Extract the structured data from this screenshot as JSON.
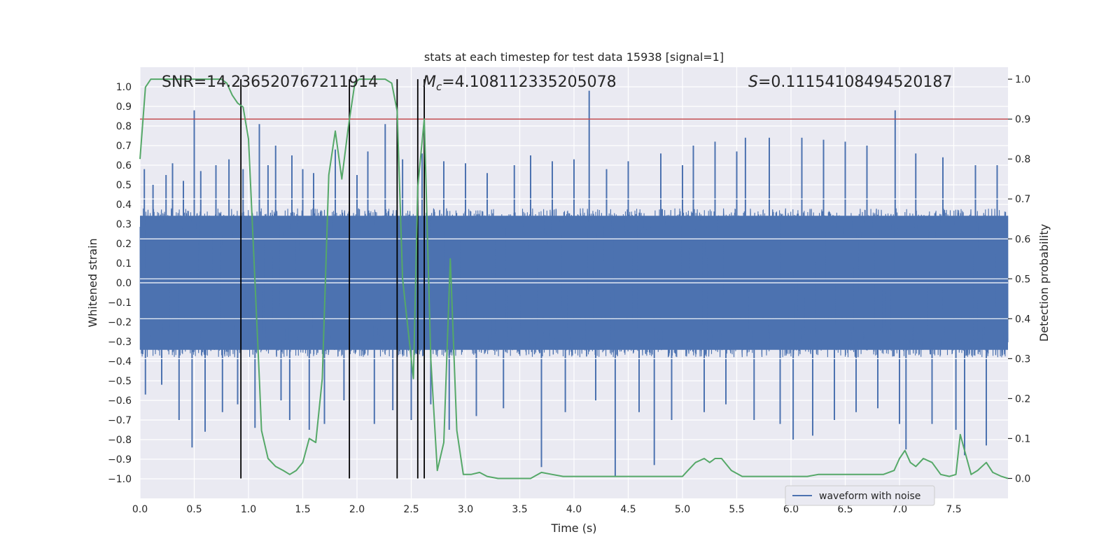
{
  "chart_data": {
    "type": "line",
    "title": "stats at each timestep for test data 15938 [signal=1]",
    "xlabel": "Time (s)",
    "ylabel_left": "Whitened strain",
    "ylabel_right": "Detection probability",
    "xlim": [
      0.0,
      8.0
    ],
    "ylim_left": [
      -1.1,
      1.1
    ],
    "ylim_right": [
      -0.05,
      1.03
    ],
    "x_ticks": [
      "0.0",
      "0.5",
      "1.0",
      "1.5",
      "2.0",
      "2.5",
      "3.0",
      "3.5",
      "4.0",
      "4.5",
      "5.0",
      "5.5",
      "6.0",
      "6.5",
      "7.0",
      "7.5"
    ],
    "x_tick_values": [
      0.0,
      0.5,
      1.0,
      1.5,
      2.0,
      2.5,
      3.0,
      3.5,
      4.0,
      4.5,
      5.0,
      5.5,
      6.0,
      6.5,
      7.0,
      7.5
    ],
    "y_left_ticks": [
      "1.0",
      "0.9",
      "0.8",
      "0.7",
      "0.6",
      "0.5",
      "0.4",
      "0.3",
      "0.2",
      "0.1",
      "0.0",
      "−0.1",
      "−0.2",
      "−0.3",
      "−0.4",
      "−0.5",
      "−0.6",
      "−0.7",
      "−0.8",
      "−0.9",
      "−1.0"
    ],
    "y_left_tick_values": [
      1.0,
      0.9,
      0.8,
      0.7,
      0.6,
      0.5,
      0.4,
      0.3,
      0.2,
      0.1,
      0.0,
      -0.1,
      -0.2,
      -0.3,
      -0.4,
      -0.5,
      -0.6,
      -0.7,
      -0.8,
      -0.9,
      -1.0
    ],
    "y_right_ticks": [
      "1.0",
      "0.9",
      "0.8",
      "0.7",
      "0.6",
      "0.5",
      "0.4",
      "0.3",
      "0.2",
      "0.1",
      "0.0"
    ],
    "y_right_tick_values": [
      1.0,
      0.9,
      0.8,
      0.7,
      0.6,
      0.5,
      0.4,
      0.3,
      0.2,
      0.1,
      0.0
    ],
    "annotations": {
      "snr": "SNR=14.236520767211914",
      "mc_symbol": "M",
      "mc_sub": "c",
      "mc_value": "=4.108112335205078",
      "s_symbol": "S",
      "s_value": "=0.11154108494520187"
    },
    "threshold_probability": 0.9,
    "vertical_markers_s": [
      0.93,
      1.93,
      2.37,
      2.56,
      2.62
    ],
    "legend": {
      "label": "waveform with noise",
      "placement": "lower-right"
    },
    "series": [
      {
        "name": "waveform with noise",
        "axis": "left",
        "color": "#4c72b0",
        "envelope": {
          "upper": 0.38,
          "lower": -0.38
        },
        "spikes": [
          {
            "x": 0.04,
            "y": 0.58
          },
          {
            "x": 0.05,
            "y": -0.57
          },
          {
            "x": 0.12,
            "y": 0.5
          },
          {
            "x": 0.2,
            "y": -0.52
          },
          {
            "x": 0.24,
            "y": 0.55
          },
          {
            "x": 0.3,
            "y": 0.61
          },
          {
            "x": 0.36,
            "y": -0.7
          },
          {
            "x": 0.4,
            "y": 0.52
          },
          {
            "x": 0.5,
            "y": 0.88
          },
          {
            "x": 0.48,
            "y": -0.84
          },
          {
            "x": 0.56,
            "y": 0.57
          },
          {
            "x": 0.6,
            "y": -0.76
          },
          {
            "x": 0.7,
            "y": 0.6
          },
          {
            "x": 0.76,
            "y": -0.66
          },
          {
            "x": 0.82,
            "y": 0.63
          },
          {
            "x": 0.9,
            "y": -0.62
          },
          {
            "x": 0.95,
            "y": 0.58
          },
          {
            "x": 1.1,
            "y": 0.81
          },
          {
            "x": 1.06,
            "y": -0.74
          },
          {
            "x": 1.18,
            "y": 0.6
          },
          {
            "x": 1.25,
            "y": 0.7
          },
          {
            "x": 1.3,
            "y": -0.6
          },
          {
            "x": 1.4,
            "y": 0.65
          },
          {
            "x": 1.38,
            "y": -0.7
          },
          {
            "x": 1.5,
            "y": 0.58
          },
          {
            "x": 1.56,
            "y": -0.75
          },
          {
            "x": 1.6,
            "y": 0.56
          },
          {
            "x": 1.7,
            "y": -0.72
          },
          {
            "x": 1.8,
            "y": 0.68
          },
          {
            "x": 1.88,
            "y": -0.6
          },
          {
            "x": 2.0,
            "y": 0.55
          },
          {
            "x": 2.1,
            "y": 0.67
          },
          {
            "x": 2.16,
            "y": -0.72
          },
          {
            "x": 2.26,
            "y": 0.81
          },
          {
            "x": 2.33,
            "y": -0.65
          },
          {
            "x": 2.42,
            "y": 0.63
          },
          {
            "x": 2.5,
            "y": -0.7
          },
          {
            "x": 2.6,
            "y": 0.66
          },
          {
            "x": 2.68,
            "y": -0.62
          },
          {
            "x": 2.8,
            "y": 0.62
          },
          {
            "x": 2.85,
            "y": -0.75
          },
          {
            "x": 3.0,
            "y": 0.61
          },
          {
            "x": 3.1,
            "y": -0.68
          },
          {
            "x": 3.2,
            "y": 0.56
          },
          {
            "x": 3.35,
            "y": -0.64
          },
          {
            "x": 3.45,
            "y": 0.6
          },
          {
            "x": 3.6,
            "y": 0.65
          },
          {
            "x": 3.7,
            "y": -0.94
          },
          {
            "x": 3.8,
            "y": 0.62
          },
          {
            "x": 3.92,
            "y": -0.66
          },
          {
            "x": 4.0,
            "y": 0.63
          },
          {
            "x": 4.14,
            "y": 0.98
          },
          {
            "x": 4.2,
            "y": -0.6
          },
          {
            "x": 4.3,
            "y": 0.58
          },
          {
            "x": 4.38,
            "y": -0.99
          },
          {
            "x": 4.5,
            "y": 0.62
          },
          {
            "x": 4.6,
            "y": -0.66
          },
          {
            "x": 4.74,
            "y": -0.93
          },
          {
            "x": 4.8,
            "y": 0.66
          },
          {
            "x": 4.9,
            "y": -0.7
          },
          {
            "x": 5.0,
            "y": 0.6
          },
          {
            "x": 5.1,
            "y": 0.7
          },
          {
            "x": 5.2,
            "y": -0.66
          },
          {
            "x": 5.3,
            "y": 0.72
          },
          {
            "x": 5.4,
            "y": -0.62
          },
          {
            "x": 5.5,
            "y": 0.67
          },
          {
            "x": 5.58,
            "y": 0.74
          },
          {
            "x": 5.66,
            "y": -0.7
          },
          {
            "x": 5.8,
            "y": 0.74
          },
          {
            "x": 5.9,
            "y": -0.72
          },
          {
            "x": 6.02,
            "y": -0.8
          },
          {
            "x": 6.1,
            "y": 0.74
          },
          {
            "x": 6.2,
            "y": -0.78
          },
          {
            "x": 6.3,
            "y": 0.73
          },
          {
            "x": 6.4,
            "y": -0.7
          },
          {
            "x": 6.5,
            "y": 0.72
          },
          {
            "x": 6.6,
            "y": -0.66
          },
          {
            "x": 6.7,
            "y": 0.7
          },
          {
            "x": 6.8,
            "y": -0.64
          },
          {
            "x": 6.96,
            "y": 0.88
          },
          {
            "x": 7.0,
            "y": -0.72
          },
          {
            "x": 7.06,
            "y": -0.85
          },
          {
            "x": 7.15,
            "y": 0.66
          },
          {
            "x": 7.3,
            "y": -0.72
          },
          {
            "x": 7.4,
            "y": 0.64
          },
          {
            "x": 7.52,
            "y": -0.75
          },
          {
            "x": 7.6,
            "y": -0.88
          },
          {
            "x": 7.7,
            "y": 0.6
          },
          {
            "x": 7.8,
            "y": -0.83
          },
          {
            "x": 7.9,
            "y": 0.6
          }
        ]
      },
      {
        "name": "detection probability",
        "axis": "right",
        "color": "#55a868",
        "x": [
          0.0,
          0.05,
          0.1,
          0.2,
          0.3,
          0.4,
          0.5,
          0.6,
          0.7,
          0.75,
          0.8,
          0.85,
          0.9,
          0.95,
          1.0,
          1.05,
          1.1,
          1.12,
          1.18,
          1.25,
          1.32,
          1.38,
          1.44,
          1.5,
          1.56,
          1.62,
          1.68,
          1.74,
          1.8,
          1.86,
          1.92,
          1.98,
          2.02,
          2.08,
          2.14,
          2.2,
          2.26,
          2.32,
          2.37,
          2.42,
          2.48,
          2.52,
          2.56,
          2.62,
          2.68,
          2.74,
          2.8,
          2.86,
          2.92,
          2.98,
          3.05,
          3.13,
          3.2,
          3.3,
          3.4,
          3.5,
          3.6,
          3.7,
          3.8,
          3.9,
          4.0,
          4.1,
          4.2,
          4.3,
          4.4,
          4.5,
          4.6,
          4.7,
          4.8,
          4.9,
          5.0,
          5.05,
          5.12,
          5.2,
          5.25,
          5.3,
          5.36,
          5.45,
          5.55,
          5.65,
          5.75,
          5.85,
          5.95,
          6.05,
          6.15,
          6.25,
          6.35,
          6.45,
          6.55,
          6.65,
          6.75,
          6.85,
          6.95,
          7.0,
          7.05,
          7.1,
          7.15,
          7.22,
          7.3,
          7.38,
          7.46,
          7.52,
          7.56,
          7.6,
          7.66,
          7.72,
          7.8,
          7.86,
          7.94,
          8.0
        ],
        "values": [
          0.8,
          0.98,
          1.0,
          1.0,
          1.0,
          1.0,
          1.0,
          1.0,
          1.0,
          1.0,
          0.99,
          0.96,
          0.94,
          0.93,
          0.85,
          0.55,
          0.25,
          0.12,
          0.05,
          0.03,
          0.02,
          0.01,
          0.02,
          0.04,
          0.1,
          0.09,
          0.25,
          0.76,
          0.87,
          0.75,
          0.88,
          0.99,
          1.0,
          1.0,
          1.0,
          1.0,
          1.0,
          0.99,
          0.92,
          0.5,
          0.35,
          0.25,
          0.73,
          0.9,
          0.3,
          0.02,
          0.09,
          0.55,
          0.12,
          0.01,
          0.01,
          0.015,
          0.005,
          0.0,
          0.0,
          0.0,
          0.0,
          0.015,
          0.01,
          0.005,
          0.005,
          0.005,
          0.005,
          0.005,
          0.005,
          0.005,
          0.005,
          0.005,
          0.005,
          0.005,
          0.005,
          0.02,
          0.04,
          0.05,
          0.04,
          0.05,
          0.05,
          0.02,
          0.005,
          0.005,
          0.005,
          0.005,
          0.005,
          0.005,
          0.005,
          0.01,
          0.01,
          0.01,
          0.01,
          0.01,
          0.01,
          0.01,
          0.02,
          0.05,
          0.07,
          0.04,
          0.03,
          0.05,
          0.04,
          0.01,
          0.005,
          0.01,
          0.11,
          0.07,
          0.01,
          0.02,
          0.04,
          0.015,
          0.005,
          0.0
        ]
      }
    ],
    "colors": {
      "background": "#eaeaf2",
      "grid": "#ffffff",
      "threshold": "#c44e52",
      "markers": "#000000",
      "text": "#262626"
    }
  }
}
